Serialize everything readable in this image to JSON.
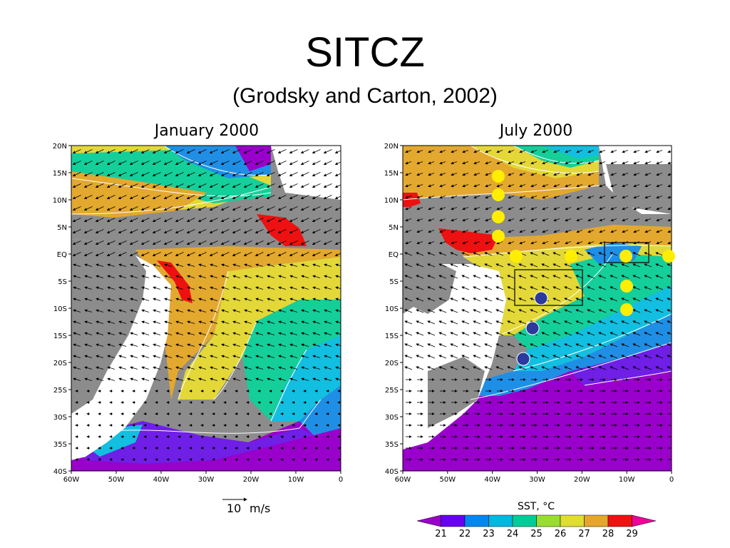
{
  "slide": {
    "title": "SITCZ",
    "subtitle": "(Grodsky and Carton, 2002)"
  },
  "panels": [
    {
      "id": "jan",
      "title": "January 2000",
      "lat_ticks": [
        "20N",
        "15N",
        "10N",
        "5N",
        "EQ",
        "5S",
        "10S",
        "15S",
        "20S",
        "25S",
        "30S",
        "35S",
        "40S"
      ],
      "lon_ticks": [
        "60W",
        "50W",
        "40W",
        "30W",
        "20W",
        "10W",
        "0"
      ]
    },
    {
      "id": "jul",
      "title": "July 2000",
      "lat_ticks": [
        "20N",
        "15N",
        "10N",
        "5N",
        "EQ",
        "5S",
        "10S",
        "15S",
        "20S",
        "25S",
        "30S",
        "35S",
        "40S"
      ],
      "lon_ticks": [
        "60W",
        "50W",
        "40W",
        "30W",
        "20W",
        "10W",
        "0"
      ]
    }
  ],
  "wind_scale": {
    "label": "10",
    "unit": "m/s"
  },
  "colorbar": {
    "title": "SST, °C",
    "ticks": [
      "21",
      "22",
      "23",
      "24",
      "25",
      "26",
      "27",
      "28",
      "29"
    ],
    "colors": [
      "#9900cc",
      "#6600ee",
      "#0088ee",
      "#00b8e0",
      "#00cc99",
      "#99dd33",
      "#e0dd33",
      "#e6a52e",
      "#ee1111",
      "#ee0099"
    ]
  },
  "map_colors": {
    "land": "#ffffff",
    "missing": "#8c8c8c",
    "sst_21": "#9900cc",
    "sst_22": "#6f1fe6",
    "sst_23": "#1f8fe6",
    "sst_24": "#12bfe0",
    "sst_25": "#14cf9a",
    "sst_26": "#99dd33",
    "sst_27": "#e3d838",
    "sst_28": "#e3a82e",
    "sst_29": "#ee1111"
  },
  "markers": {
    "yellow": "#ffee00",
    "blue": "#2b3a9c"
  }
}
